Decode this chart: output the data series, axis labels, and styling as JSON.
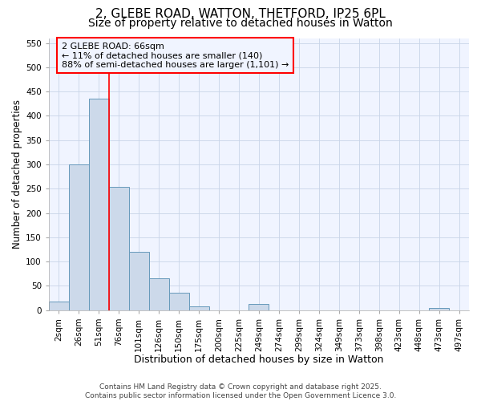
{
  "title1": "2, GLEBE ROAD, WATTON, THETFORD, IP25 6PL",
  "title2": "Size of property relative to detached houses in Watton",
  "xlabel": "Distribution of detached houses by size in Watton",
  "ylabel": "Number of detached properties",
  "categories": [
    "2sqm",
    "26sqm",
    "51sqm",
    "76sqm",
    "101sqm",
    "126sqm",
    "150sqm",
    "175sqm",
    "200sqm",
    "225sqm",
    "249sqm",
    "274sqm",
    "299sqm",
    "324sqm",
    "349sqm",
    "373sqm",
    "398sqm",
    "423sqm",
    "448sqm",
    "473sqm",
    "497sqm"
  ],
  "values": [
    18,
    300,
    435,
    253,
    120,
    65,
    35,
    8,
    0,
    0,
    12,
    0,
    0,
    0,
    0,
    0,
    0,
    0,
    0,
    5,
    0
  ],
  "bar_color": "#ccd9ea",
  "bar_edge_color": "#6699bb",
  "vline_x": 2.5,
  "vline_color": "red",
  "ylim": [
    0,
    560
  ],
  "yticks": [
    0,
    50,
    100,
    150,
    200,
    250,
    300,
    350,
    400,
    450,
    500,
    550
  ],
  "annotation_title": "2 GLEBE ROAD: 66sqm",
  "annotation_line1": "← 11% of detached houses are smaller (140)",
  "annotation_line2": "88% of semi-detached houses are larger (1,101) →",
  "annotation_box_color": "red",
  "footer1": "Contains HM Land Registry data © Crown copyright and database right 2025.",
  "footer2": "Contains public sector information licensed under the Open Government Licence 3.0.",
  "bg_color": "#ffffff",
  "plot_bg_color": "#f0f4ff",
  "grid_color": "#c8d4e8",
  "title1_fontsize": 11,
  "title2_fontsize": 10,
  "xlabel_fontsize": 9,
  "ylabel_fontsize": 8.5,
  "tick_fontsize": 7.5,
  "footer_fontsize": 6.5,
  "ann_fontsize": 8
}
